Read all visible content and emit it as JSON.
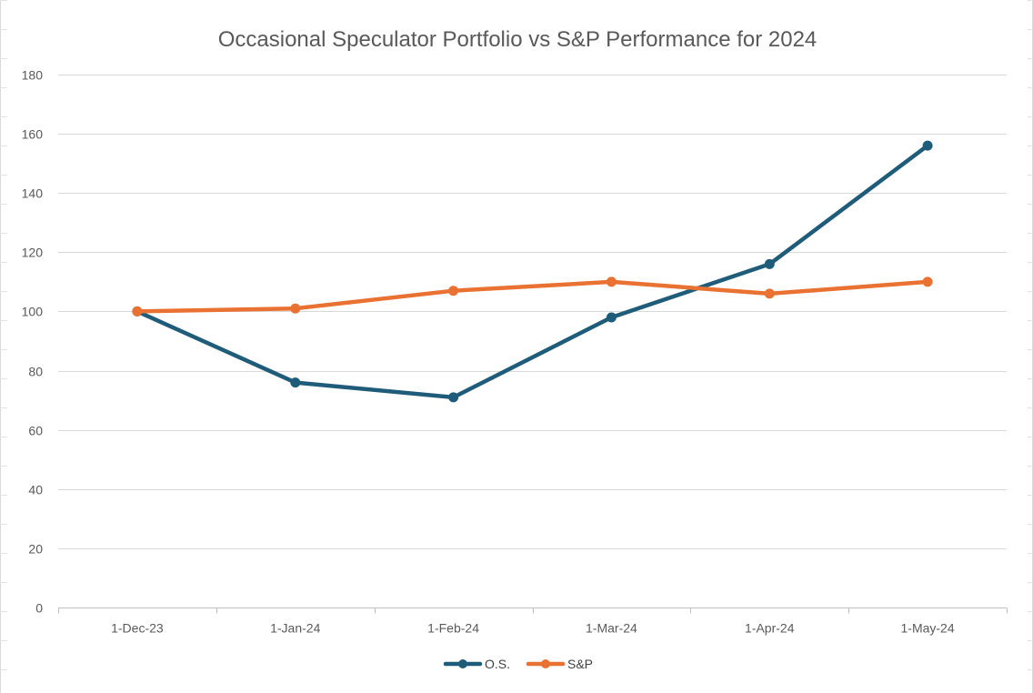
{
  "chart_data": {
    "type": "line",
    "title": "Occasional Speculator Portfolio vs S&P Performance for 2024",
    "xlabel": "",
    "ylabel": "",
    "categories": [
      "1-Dec-23",
      "1-Jan-24",
      "1-Feb-24",
      "1-Mar-24",
      "1-Apr-24",
      "1-May-24"
    ],
    "ylim": [
      0,
      180
    ],
    "yticks": [
      0,
      20,
      40,
      60,
      80,
      100,
      120,
      140,
      160,
      180
    ],
    "grid": true,
    "legend_position": "bottom",
    "series": [
      {
        "name": "O.S.",
        "color": "#1F5C7A",
        "values": [
          100,
          76,
          71,
          98,
          116,
          156
        ]
      },
      {
        "name": "S&P",
        "color": "#E97132",
        "values": [
          100,
          101,
          107,
          110,
          106,
          110
        ]
      }
    ]
  }
}
